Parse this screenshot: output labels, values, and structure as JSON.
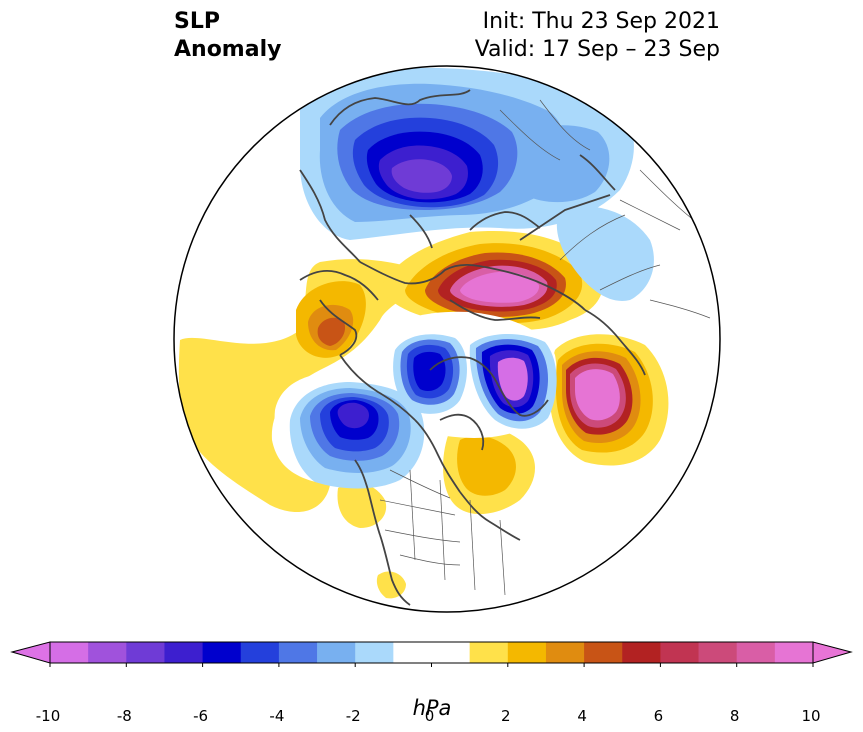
{
  "title": {
    "left_line1": "SLP",
    "left_line2": "Anomaly",
    "right_line1": "Init: Thu 23 Sep 2021",
    "right_line2": "Valid: 17 Sep – 23 Sep"
  },
  "colorbar": {
    "unit": "hPa",
    "tick_labels": [
      "-10",
      "-8",
      "-6",
      "-4",
      "-2",
      "0",
      "2",
      "4",
      "6",
      "8",
      "10"
    ],
    "colors": [
      "#d56ee6",
      "#a052dc",
      "#6f3bd6",
      "#3d1fcf",
      "#0000cd",
      "#2440dc",
      "#4f77e6",
      "#78b0f0",
      "#aad9fb",
      "#ffffff",
      "#ffffff",
      "#ffe14a",
      "#f4b800",
      "#e08c10",
      "#c85416",
      "#b22222",
      "#c13452",
      "#cc4a7a",
      "#d95ea6",
      "#e674d4"
    ],
    "extend_min_color": "#dd72e6",
    "extend_max_color": "#e874d6"
  }
}
